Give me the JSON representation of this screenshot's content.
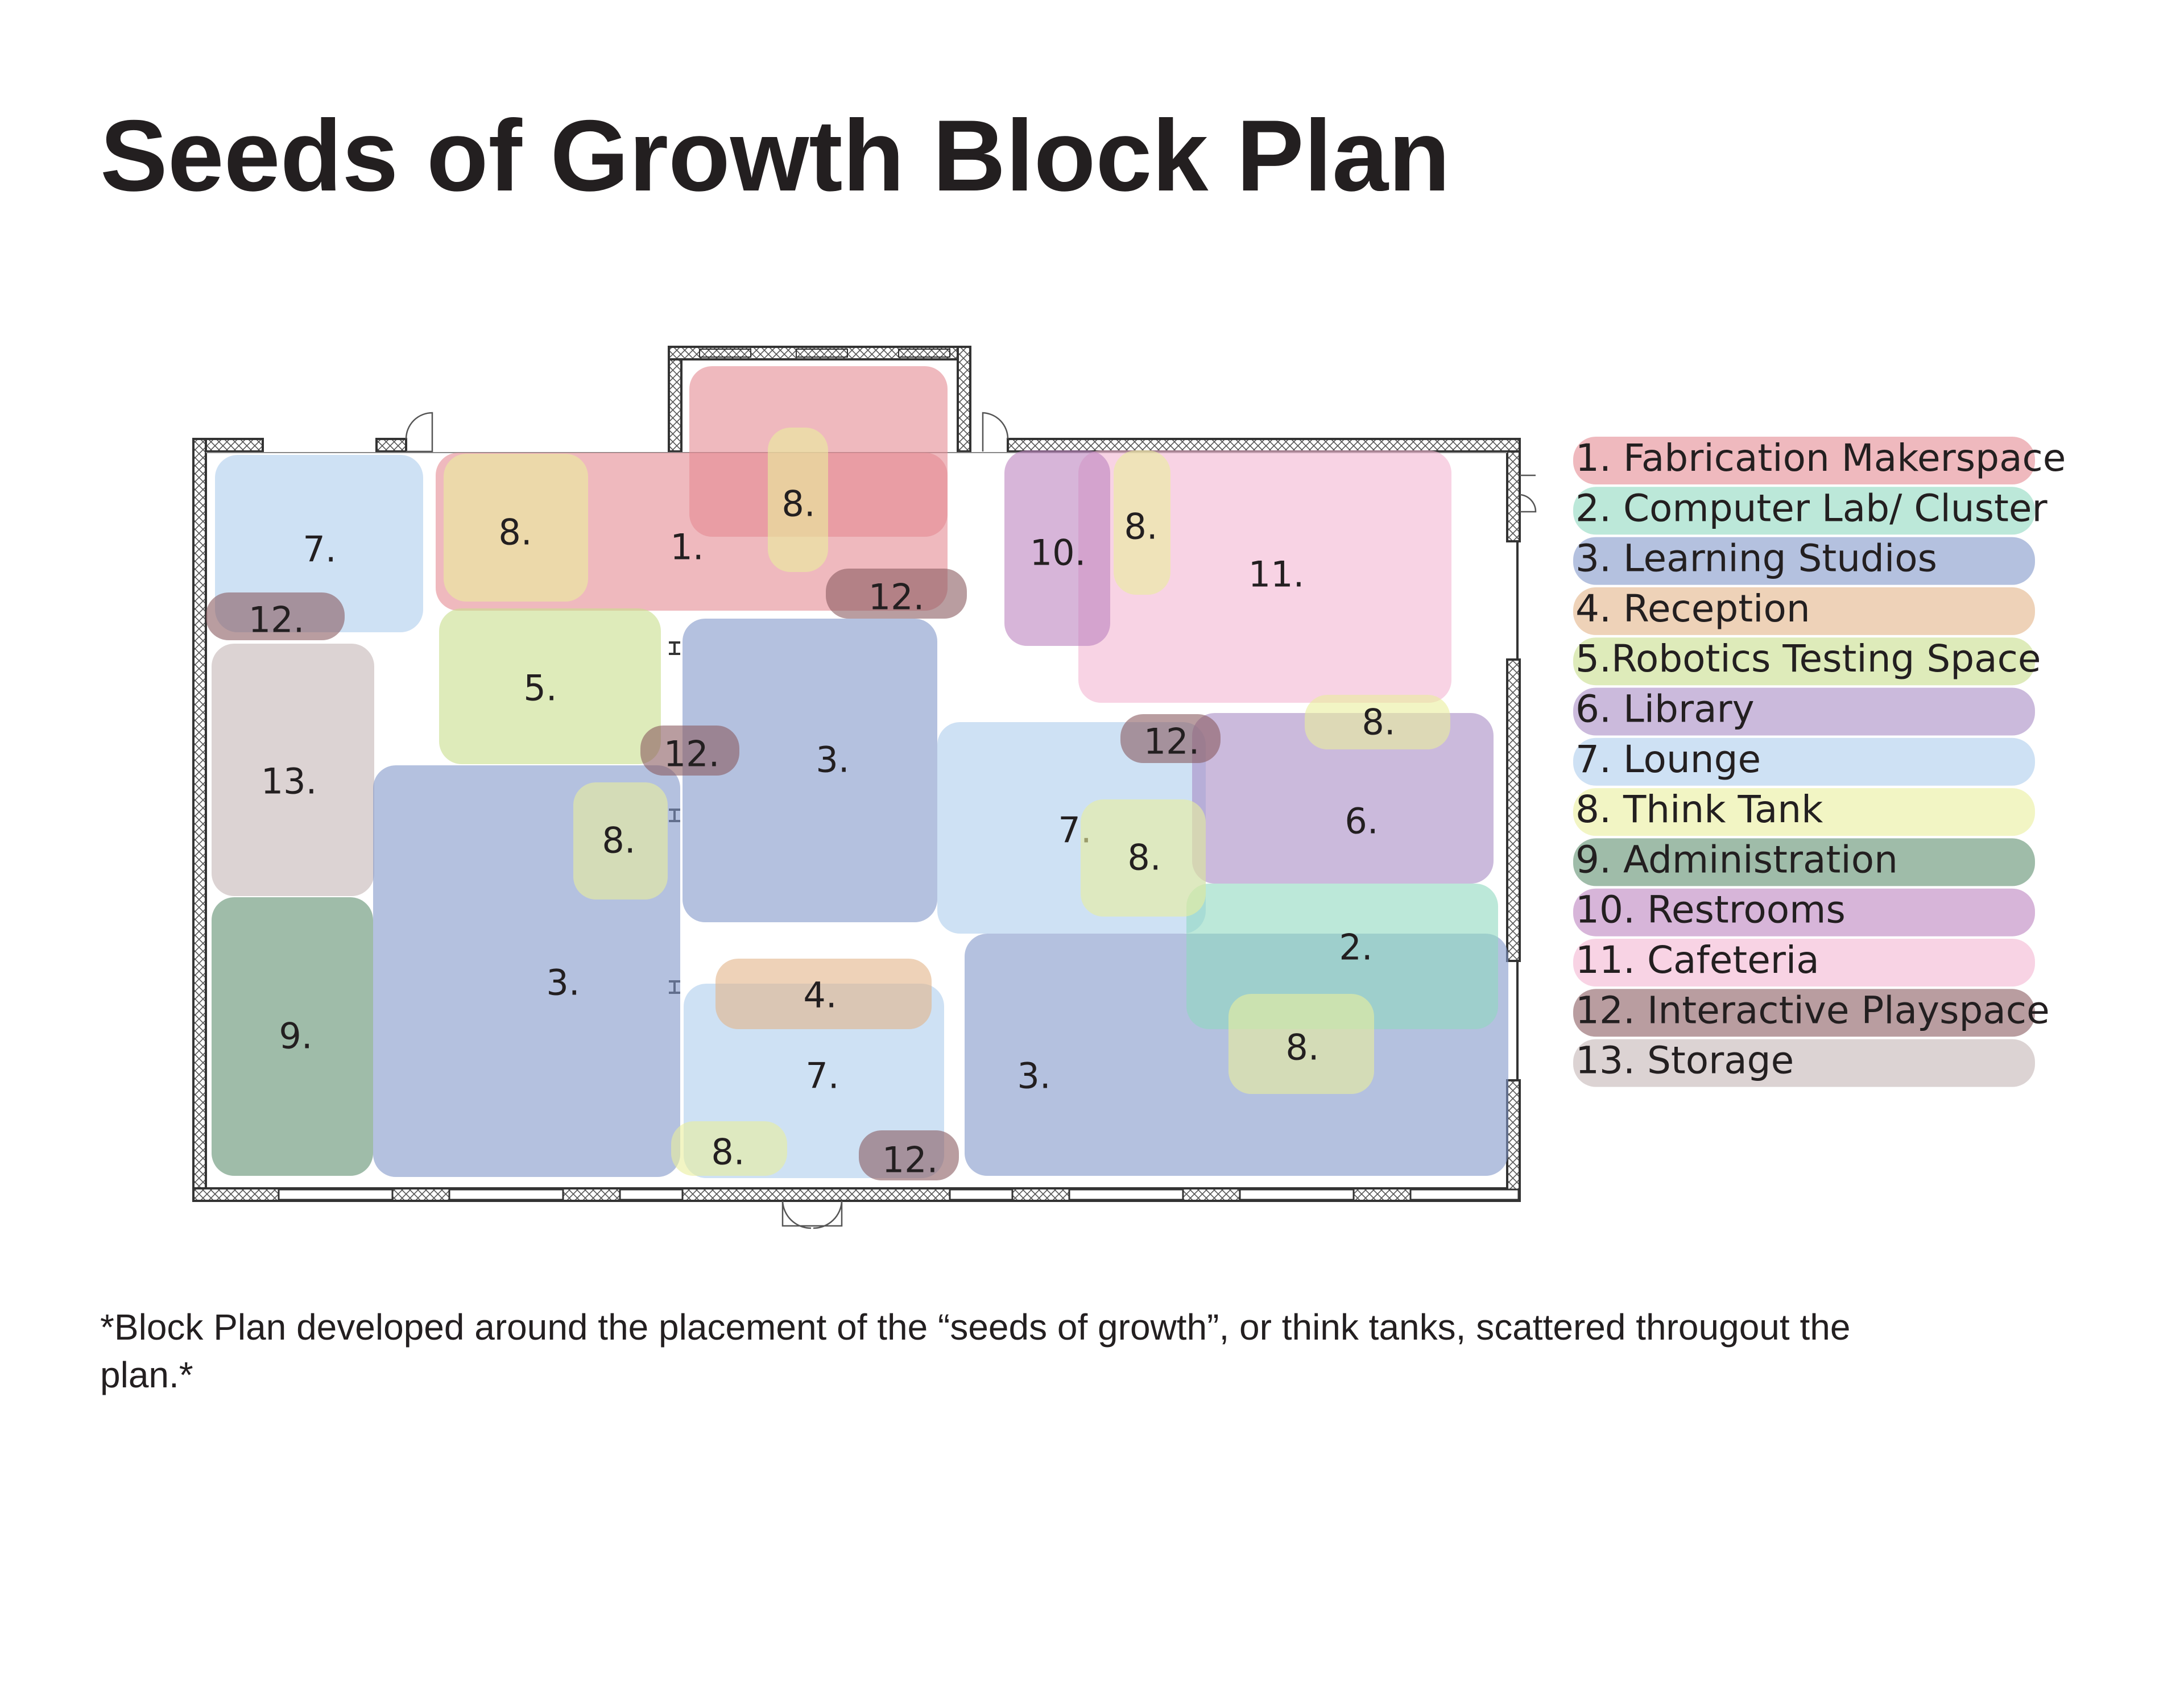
{
  "title": "Seeds of Growth Block Plan",
  "note": {
    "line1": "*Block Plan developed around the placement of the “seeds of growth”, or think tanks, scattered througout the",
    "line2": "plan.*"
  },
  "colors": {
    "1": "#e58a93",
    "2": "#8fd9c0",
    "3": "#8297c9",
    "4": "#e2b488",
    "5": "#c8de8c",
    "6": "#a88cc4",
    "7": "#aecdec",
    "8": "#e9ee9c",
    "9": "#5f9070",
    "10": "#bd84c0",
    "11": "#f3b6d2",
    "12": "#8a5c61",
    "13": "#c4b6b5"
  },
  "legend": [
    {
      "key": "1",
      "label": "1. Fabrication Makerspace"
    },
    {
      "key": "2",
      "label": "2. Computer Lab/ Cluster"
    },
    {
      "key": "3",
      "label": "3. Learning Studios"
    },
    {
      "key": "4",
      "label": "4. Reception"
    },
    {
      "key": "5",
      "label": "5.Robotics Testing Space"
    },
    {
      "key": "6",
      "label": "6. Library"
    },
    {
      "key": "7",
      "label": "7. Lounge"
    },
    {
      "key": "8",
      "label": "8. Think Tank"
    },
    {
      "key": "9",
      "label": "9. Administration"
    },
    {
      "key": "10",
      "label": "10.  Restrooms"
    },
    {
      "key": "11",
      "label": "11.  Cafeteria"
    },
    {
      "key": "12",
      "label": "12.  Interactive Playspace"
    },
    {
      "key": "13",
      "label": "13. Storage"
    }
  ],
  "zones": [
    {
      "key": "1",
      "label": "1."
    },
    {
      "key": "7",
      "label": "7."
    },
    {
      "key": "13",
      "label": "13."
    },
    {
      "key": "9",
      "label": "9."
    },
    {
      "key": "5",
      "label": "5."
    },
    {
      "key": "3",
      "label": "3."
    },
    {
      "key": "3",
      "label": "3."
    },
    {
      "key": "7",
      "label": "7."
    },
    {
      "key": "3",
      "label": "3."
    },
    {
      "key": "7",
      "label": "7."
    },
    {
      "key": "11",
      "label": "11."
    },
    {
      "key": "10",
      "label": "10."
    },
    {
      "key": "6",
      "label": "6."
    },
    {
      "key": "2",
      "label": "2."
    },
    {
      "key": "4",
      "label": "4."
    },
    {
      "key": "8",
      "label": "8."
    },
    {
      "key": "8",
      "label": "8."
    },
    {
      "key": "8",
      "label": "8."
    },
    {
      "key": "8",
      "label": "8."
    },
    {
      "key": "8",
      "label": "8."
    },
    {
      "key": "8",
      "label": "8."
    },
    {
      "key": "8",
      "label": "8."
    },
    {
      "key": "8",
      "label": "8."
    },
    {
      "key": "12",
      "label": "12."
    },
    {
      "key": "12",
      "label": "12."
    },
    {
      "key": "12",
      "label": "12."
    },
    {
      "key": "12",
      "label": "12."
    },
    {
      "key": "12",
      "label": "12."
    }
  ]
}
